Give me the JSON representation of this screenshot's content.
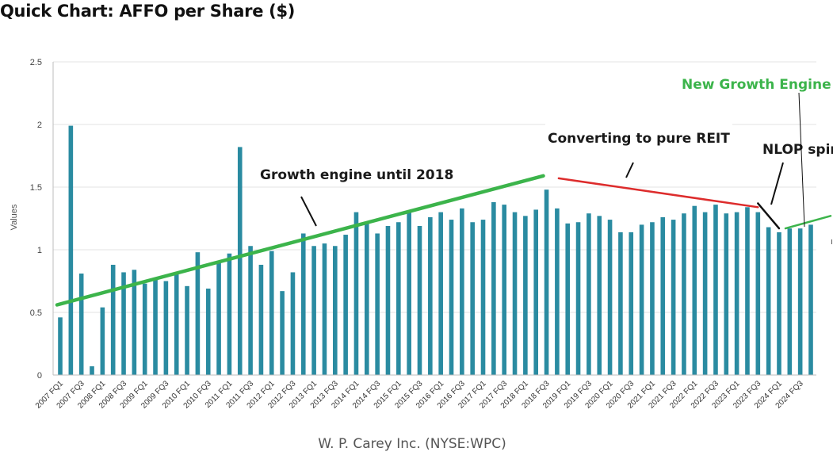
{
  "chart_data": {
    "type": "bar",
    "title": "Quick Chart: AFFO per Share ($)",
    "xlabel": "W. P. Carey Inc. (NYSE:WPC)",
    "ylabel": "Values",
    "ylim": [
      0,
      2.5
    ],
    "yticks": [
      "0",
      "0.5",
      "1",
      "1.5",
      "2",
      "2.5"
    ],
    "ytick_values": [
      0,
      0.5,
      1,
      1.5,
      2,
      2.5
    ],
    "grid": true,
    "bar_color": "#2a8ba1",
    "categories": [
      "2007 FQ1",
      "2007 FQ2",
      "2007 FQ3",
      "2007 FQ4",
      "2008 FQ1",
      "2008 FQ2",
      "2008 FQ3",
      "2008 FQ4",
      "2009 FQ1",
      "2009 FQ2",
      "2009 FQ3",
      "2009 FQ4",
      "2010 FQ1",
      "2010 FQ2",
      "2010 FQ3",
      "2010 FQ4",
      "2011 FQ1",
      "2011 FQ2",
      "2011 FQ3",
      "2011 FQ4",
      "2012 FQ1",
      "2012 FQ2",
      "2012 FQ3",
      "2012 FQ4",
      "2013 FQ1",
      "2013 FQ2",
      "2013 FQ3",
      "2013 FQ4",
      "2014 FQ1",
      "2014 FQ2",
      "2014 FQ3",
      "2014 FQ4",
      "2015 FQ1",
      "2015 FQ2",
      "2015 FQ3",
      "2015 FQ4",
      "2016 FQ1",
      "2016 FQ2",
      "2016 FQ3",
      "2016 FQ4",
      "2017 FQ1",
      "2017 FQ2",
      "2017 FQ3",
      "2017 FQ4",
      "2018 FQ1",
      "2018 FQ2",
      "2018 FQ3",
      "2018 FQ4",
      "2019 FQ1",
      "2019 FQ2",
      "2019 FQ3",
      "2019 FQ4",
      "2020 FQ1",
      "2020 FQ2",
      "2020 FQ3",
      "2020 FQ4",
      "2021 FQ1",
      "2021 FQ2",
      "2021 FQ3",
      "2021 FQ4",
      "2022 FQ1",
      "2022 FQ2",
      "2022 FQ3",
      "2022 FQ4",
      "2023 FQ1",
      "2023 FQ2",
      "2023 FQ3",
      "2023 FQ4",
      "2024 FQ1",
      "2024 FQ2",
      "2024 FQ3",
      "2024 FQ4"
    ],
    "xtick_labels": [
      "2007 FQ1",
      "2007 FQ3",
      "2008 FQ1",
      "2008 FQ3",
      "2009 FQ1",
      "2009 FQ3",
      "2010 FQ1",
      "2010 FQ3",
      "2011 FQ1",
      "2011 FQ3",
      "2012 FQ1",
      "2012 FQ3",
      "2013 FQ1",
      "2013 FQ3",
      "2014 FQ1",
      "2014 FQ3",
      "2015 FQ1",
      "2015 FQ3",
      "2016 FQ1",
      "2016 FQ3",
      "2017 FQ1",
      "2017 FQ3",
      "2018 FQ1",
      "2018 FQ3",
      "2019 FQ1",
      "2019 FQ3",
      "2020 FQ1",
      "2020 FQ3",
      "2021 FQ1",
      "2021 FQ3",
      "2022 FQ1",
      "2022 FQ3",
      "2023 FQ1",
      "2023 FQ3",
      "2024 FQ1",
      "2024 FQ3"
    ],
    "values": [
      0.46,
      1.99,
      0.81,
      0.07,
      0.54,
      0.88,
      0.82,
      0.84,
      0.73,
      0.76,
      0.75,
      0.82,
      0.71,
      0.98,
      0.69,
      0.9,
      0.97,
      1.82,
      1.03,
      0.88,
      0.99,
      0.67,
      0.82,
      1.13,
      1.03,
      1.05,
      1.03,
      1.12,
      1.3,
      1.21,
      1.13,
      1.19,
      1.22,
      1.31,
      1.19,
      1.26,
      1.3,
      1.24,
      1.33,
      1.22,
      1.24,
      1.38,
      1.36,
      1.3,
      1.27,
      1.32,
      1.48,
      1.33,
      1.21,
      1.22,
      1.29,
      1.27,
      1.24,
      1.14,
      1.14,
      1.2,
      1.22,
      1.26,
      1.24,
      1.29,
      1.35,
      1.3,
      1.36,
      1.29,
      1.3,
      1.34,
      1.3,
      1.18,
      1.14,
      1.17,
      1.17,
      1.2
    ],
    "annotations": [
      {
        "text": "Growth engine until 2018",
        "color": "#1a1a1a"
      },
      {
        "text": "Converting to pure REIT",
        "color": "#1a1a1a"
      },
      {
        "text": "NLOP spin",
        "color": "#1a1a1a"
      },
      {
        "text": "New Growth Engine",
        "color": "#3cb44b"
      }
    ],
    "trendlines": [
      {
        "name": "growth",
        "color": "#3cb44b",
        "from": [
          "2007 FQ1",
          0.56
        ],
        "to": [
          "2018 FQ3",
          1.59
        ]
      },
      {
        "name": "reit",
        "color": "#dd2c2c",
        "from": [
          "2018 FQ4",
          1.57
        ],
        "to": [
          "2023 FQ3",
          1.34
        ]
      },
      {
        "name": "spin",
        "color": "#111111",
        "from": [
          "2023 FQ3",
          1.37
        ],
        "to": [
          "2024 FQ1",
          1.17
        ]
      },
      {
        "name": "new-growth",
        "color": "#3cb44b",
        "from": [
          "2024 FQ1",
          1.17
        ],
        "to": [
          "2024 FQ4",
          1.27
        ]
      }
    ]
  }
}
